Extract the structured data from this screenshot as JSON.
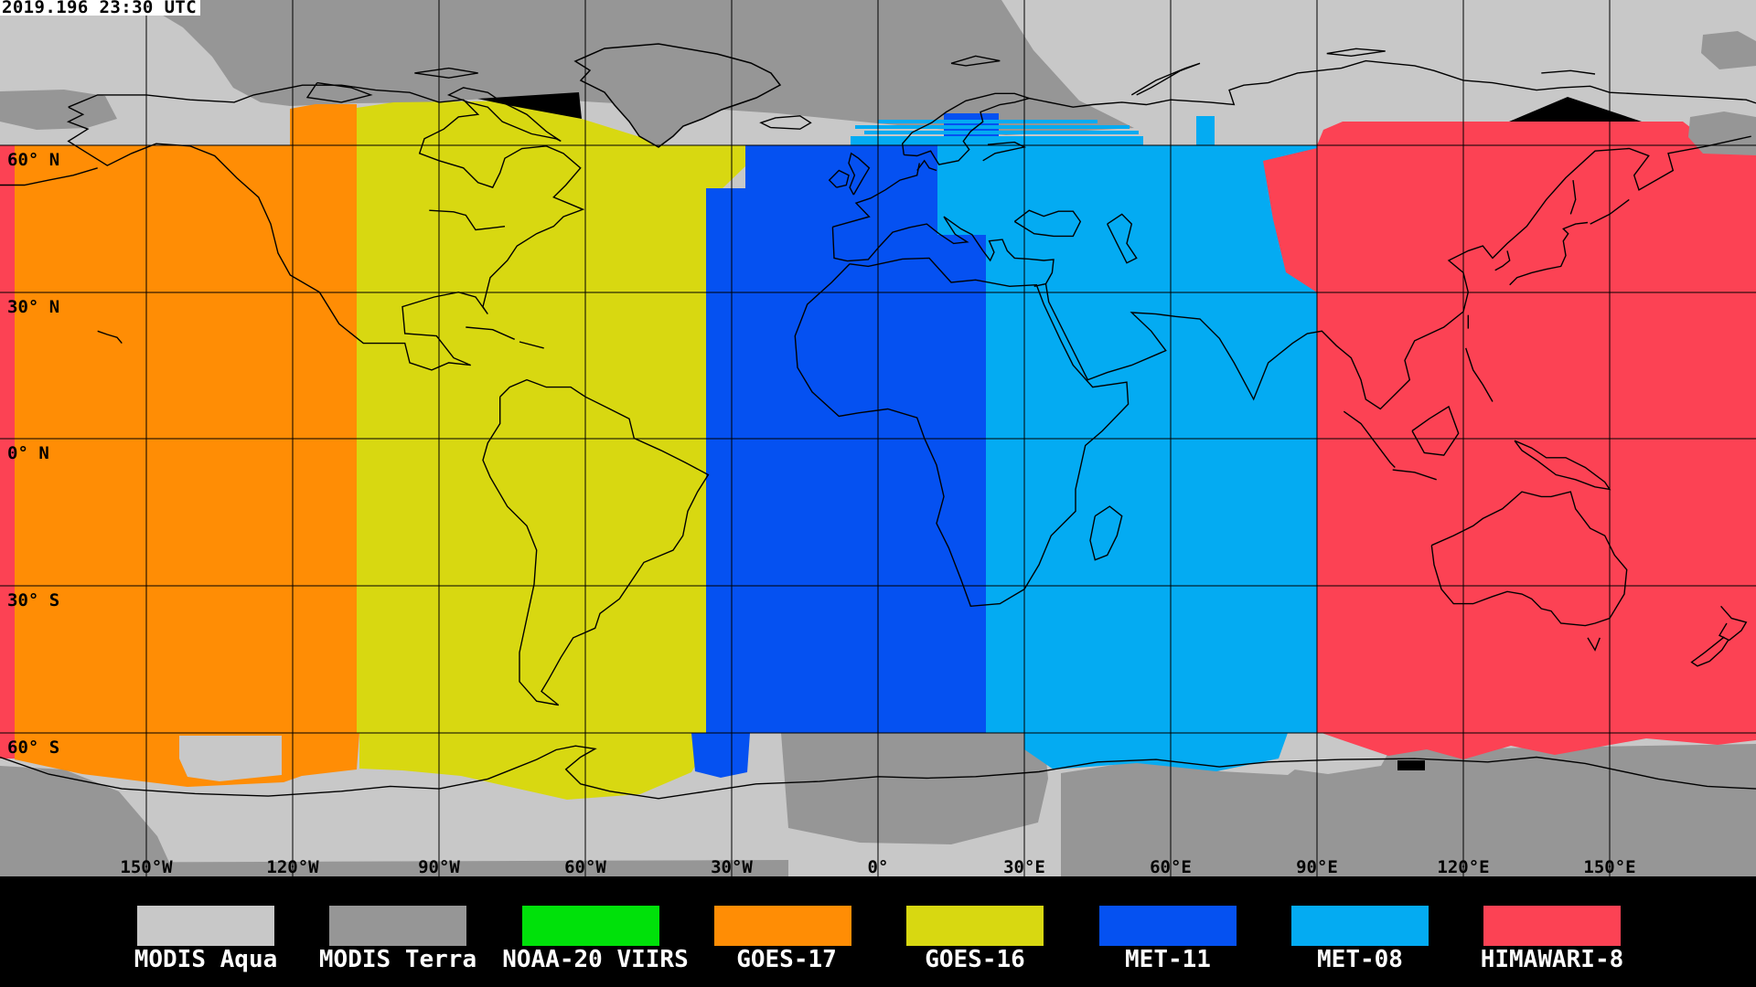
{
  "timestamp": "2019.196 23:30 UTC",
  "map": {
    "lat_labels": [
      "60° N",
      "30° N",
      "0° N",
      "30° S",
      "60° S"
    ],
    "lon_labels": [
      "150°W",
      "120°W",
      "90°W",
      "60°W",
      "30°W",
      "0°",
      "30°E",
      "60°E",
      "90°E",
      "120°E",
      "150°E"
    ]
  },
  "legend": {
    "items": [
      {
        "label": "MODIS Aqua",
        "color": "#c8c8c8"
      },
      {
        "label": "MODIS Terra",
        "color": "#969696"
      },
      {
        "label": "NOAA-20 VIIRS",
        "color": "#00e10a"
      },
      {
        "label": "GOES-17",
        "color": "#ff8d05"
      },
      {
        "label": "GOES-16",
        "color": "#d8d811"
      },
      {
        "label": "MET-11",
        "color": "#0551f1"
      },
      {
        "label": "MET-08",
        "color": "#04abf2"
      },
      {
        "label": "HIMAWARI-8",
        "color": "#fc4254"
      }
    ]
  },
  "colors": {
    "no_data": "#000000",
    "grid": "#000000",
    "coastline": "#000000",
    "legend_background": "#000000",
    "timestamp_background": "#ffffff",
    "timestamp_text": "#000000"
  }
}
